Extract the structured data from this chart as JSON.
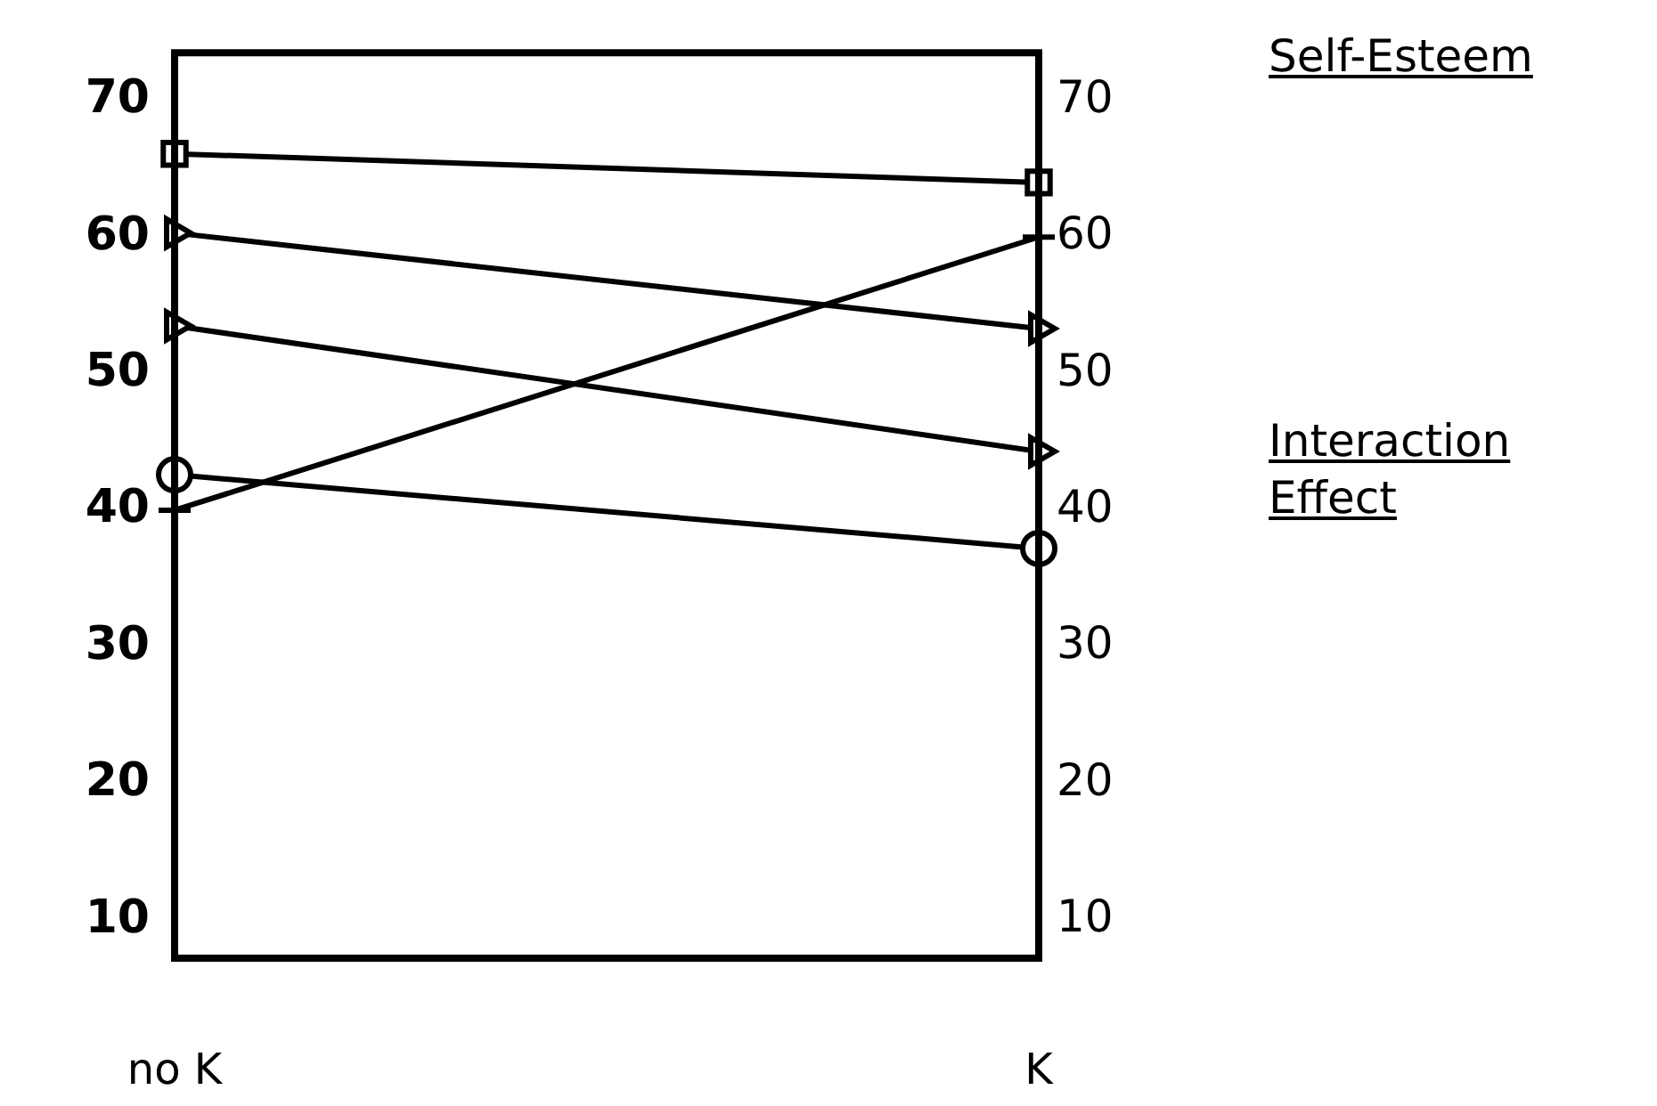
{
  "chart_data": {
    "type": "line",
    "categories": [
      "no K",
      "K"
    ],
    "series": [
      {
        "color": "#000000",
        "marker": "square",
        "values": [
          66.1,
          64.0
        ]
      },
      {
        "color": "#000000",
        "marker": "triangle",
        "values": [
          60.3,
          53.3
        ]
      },
      {
        "color": "#000000",
        "marker": "triangle",
        "values": [
          53.5,
          44.3
        ]
      },
      {
        "color": "#000000",
        "marker": "cross",
        "values": [
          40,
          60
        ]
      },
      {
        "color": "#000000",
        "marker": "circle",
        "values": [
          42.6,
          37.2
        ]
      }
    ],
    "ylim": [
      7.2,
      73.5
    ],
    "yticks": [
      10,
      20,
      30,
      40,
      50,
      60,
      70
    ],
    "y2lim": [
      7.2,
      73.5
    ],
    "y2ticks": [
      10,
      20,
      30,
      40,
      50,
      60,
      70
    ],
    "annotations": [
      "Self-Esteem",
      "Interaction Effect"
    ],
    "grid": false,
    "legend": false
  }
}
